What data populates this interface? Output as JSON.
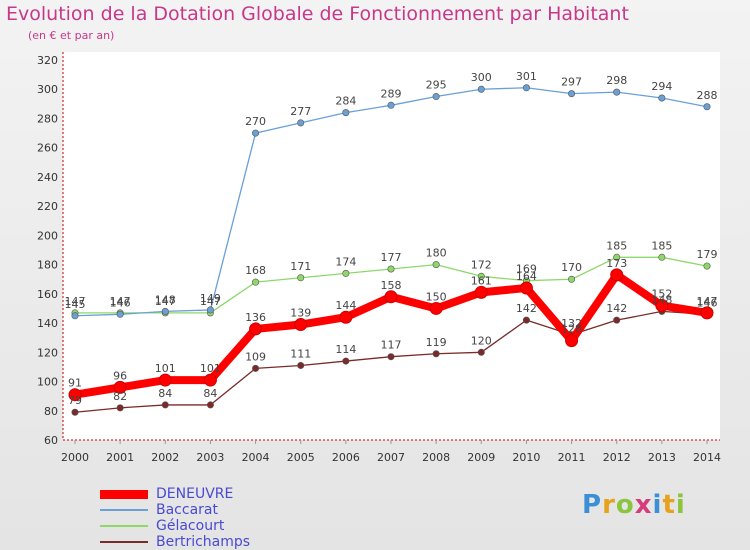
{
  "chart_data": {
    "type": "line",
    "title": "Evolution de la Dotation Globale de Fonctionnement par Habitant",
    "subtitle": "(en € et par an)",
    "xlabel": "",
    "ylabel": "",
    "x": [
      "2000",
      "2001",
      "2002",
      "2003",
      "2004",
      "2005",
      "2006",
      "2007",
      "2008",
      "2009",
      "2010",
      "2011",
      "2012",
      "2013",
      "2014"
    ],
    "ylim": [
      60,
      320
    ],
    "yticks": [
      60,
      80,
      100,
      120,
      140,
      160,
      180,
      200,
      220,
      240,
      260,
      280,
      300,
      320
    ],
    "grid": false,
    "legend": "bottom-left",
    "series": [
      {
        "name": "DENEUVRE",
        "color": "#ff0000",
        "values": [
          91,
          96,
          101,
          101,
          136,
          139,
          144,
          158,
          150,
          161,
          164,
          128,
          173,
          152,
          147
        ]
      },
      {
        "name": "Baccarat",
        "color": "#6aa0d6",
        "values": [
          145,
          146,
          148,
          149,
          270,
          277,
          284,
          289,
          295,
          300,
          301,
          297,
          298,
          294,
          288
        ]
      },
      {
        "name": "Gélacourt",
        "color": "#8ed86a",
        "values": [
          147,
          147,
          147,
          147,
          168,
          171,
          174,
          177,
          180,
          172,
          169,
          170,
          185,
          185,
          179
        ]
      },
      {
        "name": "Bertrichamps",
        "color": "#7a2a2a",
        "values": [
          79,
          82,
          84,
          84,
          109,
          111,
          114,
          117,
          119,
          120,
          142,
          132,
          142,
          148,
          146
        ]
      }
    ],
    "data_labels": [
      [
        91,
        96,
        101,
        101,
        136,
        139,
        144,
        158,
        150,
        161,
        164,
        128,
        173,
        152,
        147
      ],
      [
        145,
        146,
        148,
        149,
        270,
        277,
        284,
        289,
        295,
        300,
        301,
        297,
        298,
        294,
        288
      ],
      [
        147,
        147,
        147,
        147,
        168,
        171,
        174,
        177,
        180,
        172,
        169,
        170,
        185,
        185,
        179
      ],
      [
        79,
        82,
        84,
        84,
        109,
        111,
        114,
        117,
        119,
        120,
        142,
        132,
        142,
        148,
        146
      ]
    ]
  },
  "brand": {
    "name": "Proxiti"
  }
}
